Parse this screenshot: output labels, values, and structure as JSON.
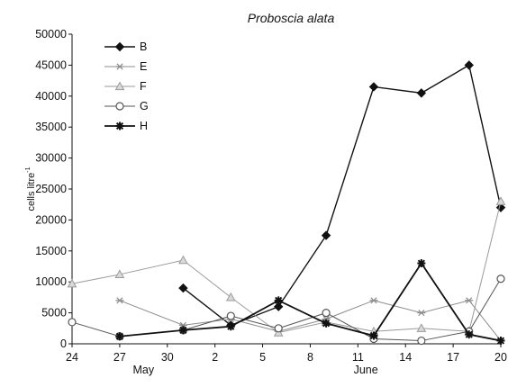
{
  "chart_data": {
    "type": "line",
    "title": "Proboscia alata",
    "ylabel": "cells litre",
    "ylabel_superscript": "-1",
    "ylim": [
      0,
      50000
    ],
    "yticks": [
      0,
      5000,
      10000,
      15000,
      20000,
      25000,
      30000,
      35000,
      40000,
      45000,
      50000
    ],
    "ytick_labels": [
      "0",
      "5000",
      "10000",
      "15000",
      "20000",
      "25000",
      "30000",
      "35000",
      "40000",
      "45000",
      "50000"
    ],
    "xlim": [
      0,
      27
    ],
    "xticks": [
      0,
      3,
      6,
      9,
      12,
      15,
      18,
      21,
      24,
      27
    ],
    "xtick_labels": [
      "24",
      "27",
      "30",
      "2",
      "5",
      "8",
      "11",
      "14",
      "17",
      "20"
    ],
    "month_labels": [
      {
        "text": "May",
        "x": 4.5
      },
      {
        "text": "June",
        "x": 18.5
      }
    ],
    "grid": false,
    "legend_position": "top-left",
    "series": [
      {
        "name": "B",
        "color": "#111111",
        "marker": "diamond",
        "linewidth": 1.4,
        "x": [
          7,
          10,
          13,
          16,
          19,
          22,
          25,
          27
        ],
        "y": [
          9000,
          3000,
          6000,
          17500,
          41500,
          40500,
          45000,
          22000
        ]
      },
      {
        "name": "E",
        "color": "#8c8c8c",
        "marker": "star",
        "linewidth": 1.0,
        "x": [
          3,
          7,
          10,
          13,
          16,
          19,
          22,
          25,
          27
        ],
        "y": [
          7000,
          3000,
          4000,
          2000,
          4000,
          7000,
          5000,
          7000,
          500
        ]
      },
      {
        "name": "F",
        "color": "#9a9a9a",
        "marker": "triangle",
        "linewidth": 1.0,
        "x": [
          0,
          3,
          7,
          10,
          13,
          16,
          19,
          22,
          25,
          27
        ],
        "y": [
          9700,
          11200,
          13500,
          7500,
          1800,
          3500,
          2000,
          2500,
          2000,
          23000
        ]
      },
      {
        "name": "G",
        "color": "#555555",
        "marker": "circle",
        "linewidth": 1.0,
        "x": [
          0,
          3,
          7,
          10,
          13,
          16,
          19,
          22,
          25,
          27
        ],
        "y": [
          3500,
          1200,
          2200,
          4500,
          2500,
          5000,
          800,
          500,
          2000,
          10500
        ]
      },
      {
        "name": "H",
        "color": "#111111",
        "marker": "asterisk",
        "linewidth": 1.8,
        "x": [
          3,
          7,
          10,
          13,
          16,
          19,
          22,
          25,
          27
        ],
        "y": [
          1200,
          2200,
          2800,
          7000,
          3300,
          1300,
          13000,
          1500,
          500
        ]
      }
    ]
  }
}
